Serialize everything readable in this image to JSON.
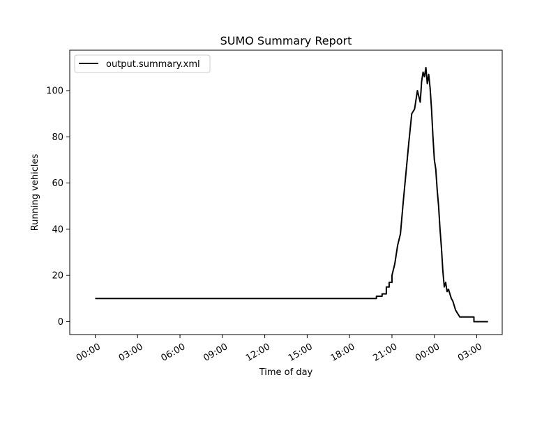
{
  "chart_data": {
    "type": "line",
    "title": "SUMO Summary Report",
    "xlabel": "Time of day",
    "ylabel": "Running vehicles",
    "x_unit": "hours after 00:00 on the first day",
    "xlim": [
      -1.8,
      28.8
    ],
    "ylim": [
      -5.6,
      117.5
    ],
    "x_ticks": [
      {
        "value": 0,
        "label": "00:00"
      },
      {
        "value": 3,
        "label": "03:00"
      },
      {
        "value": 6,
        "label": "06:00"
      },
      {
        "value": 9,
        "label": "09:00"
      },
      {
        "value": 12,
        "label": "12:00"
      },
      {
        "value": 15,
        "label": "15:00"
      },
      {
        "value": 18,
        "label": "18:00"
      },
      {
        "value": 21,
        "label": "21:00"
      },
      {
        "value": 24,
        "label": "00:00"
      },
      {
        "value": 27,
        "label": "03:00"
      }
    ],
    "y_ticks": [
      {
        "value": 0,
        "label": "0"
      },
      {
        "value": 20,
        "label": "20"
      },
      {
        "value": 40,
        "label": "40"
      },
      {
        "value": 60,
        "label": "60"
      },
      {
        "value": 80,
        "label": "80"
      },
      {
        "value": 100,
        "label": "100"
      }
    ],
    "grid": false,
    "legend": {
      "position": "top-left"
    },
    "series": [
      {
        "name": "output.summary.xml",
        "color": "#000000",
        "x": [
          0,
          19.9,
          19.9,
          20.3,
          20.3,
          20.6,
          20.6,
          20.8,
          20.8,
          21.0,
          21.0,
          21.2,
          21.4,
          21.6,
          21.8,
          22.0,
          22.2,
          22.4,
          22.6,
          22.8,
          23.0,
          23.1,
          23.2,
          23.3,
          23.4,
          23.5,
          23.6,
          23.7,
          23.8,
          23.9,
          24.0,
          24.1,
          24.2,
          24.3,
          24.4,
          24.5,
          24.6,
          24.7,
          24.8,
          24.9,
          25.0,
          25.1,
          25.2,
          25.3,
          25.4,
          25.5,
          25.6,
          25.7,
          25.8,
          25.9,
          26.0,
          26.1,
          26.2,
          26.2,
          26.4,
          26.4,
          26.6,
          26.6,
          26.8,
          26.8,
          27.8
        ],
        "y": [
          10,
          10,
          11,
          11,
          12,
          12,
          15,
          15,
          17,
          17,
          20,
          25,
          33,
          38,
          52,
          65,
          78,
          90,
          92,
          100,
          95,
          104,
          108,
          106,
          110,
          103,
          107,
          101,
          92,
          80,
          70,
          66,
          57,
          50,
          40,
          32,
          22,
          15,
          17,
          13,
          14,
          12,
          10,
          9,
          7,
          5,
          4,
          3,
          2,
          2,
          2,
          2,
          2,
          2,
          2,
          2,
          2,
          2,
          2,
          0,
          0
        ]
      }
    ]
  }
}
